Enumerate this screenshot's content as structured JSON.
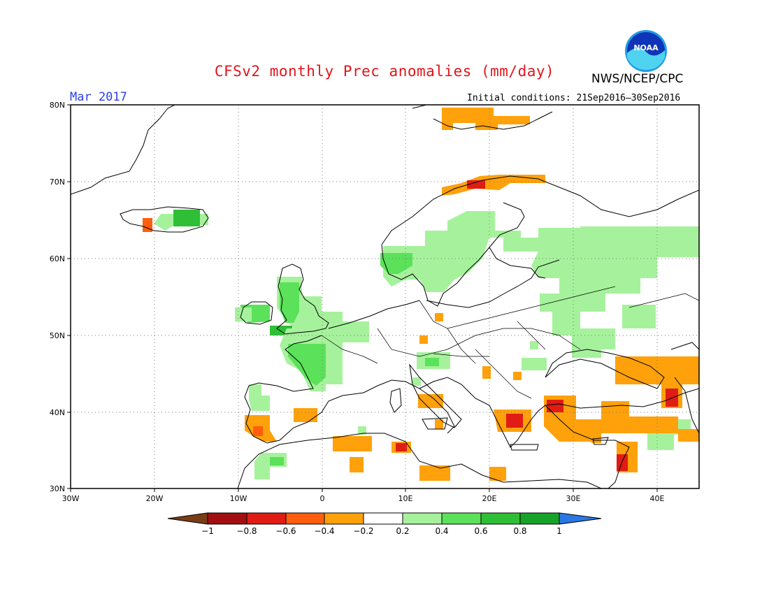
{
  "header": {
    "title": "CFSv2 monthly Prec anomalies (mm/day)",
    "month": "Mar 2017",
    "initial_conditions": "Initial conditions: 21Sep2016–30Sep2016",
    "agency": "NWS/NCEP/CPC",
    "logo_text": "NOAA"
  },
  "map": {
    "region": "Europe",
    "lon_range": [
      -30,
      45
    ],
    "lat_range": [
      30,
      80
    ],
    "lon_ticks": [
      "30W",
      "20W",
      "10W",
      "0",
      "10E",
      "20E",
      "30E",
      "40E"
    ],
    "lat_ticks": [
      "80N",
      "70N",
      "60N",
      "50N",
      "40N",
      "30N"
    ],
    "grid": "dotted",
    "colors": {
      "land_outline": "#000000",
      "positive_light": "#a6f29c",
      "positive_mid": "#5be15a",
      "positive_strong": "#2fbf36",
      "positive_max": "#17a32a",
      "negative_light": "#ffa10a",
      "negative_mid": "#ff5e0f",
      "negative_strong": "#e01c14",
      "negative_max": "#a30f10"
    }
  },
  "colorbar": {
    "labels": [
      "−1",
      "−0.8",
      "−0.6",
      "−0.4",
      "−0.2",
      "0.2",
      "0.4",
      "0.6",
      "0.8",
      "1"
    ],
    "colors": [
      "#7a3d16",
      "#a30f10",
      "#e01c14",
      "#ff5e0f",
      "#ffa10a",
      "#ffffff",
      "#a6f29c",
      "#5be15a",
      "#2fbf36",
      "#17a32a",
      "#2a78e6"
    ]
  }
}
